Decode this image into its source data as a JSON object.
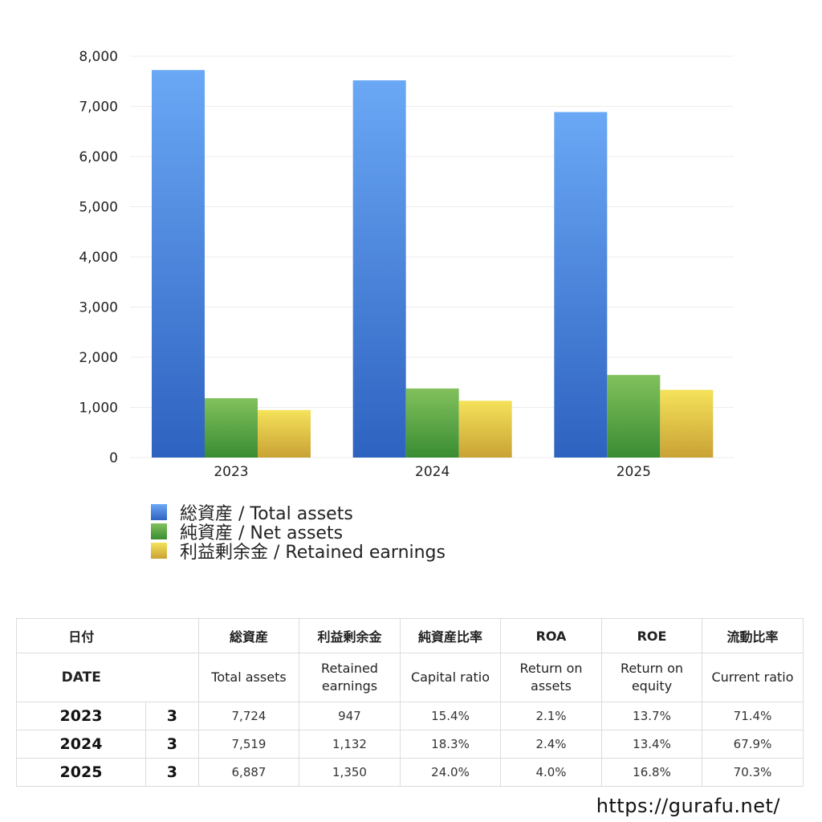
{
  "chart_data": {
    "type": "bar",
    "categories": [
      "2023",
      "2024",
      "2025"
    ],
    "series": [
      {
        "name": "総資産 / Total assets",
        "values": [
          7724,
          7519,
          6887
        ],
        "color_top": "#6aa8f5",
        "color_bottom": "#2e62c0"
      },
      {
        "name": "純資産 / Net assets",
        "values": [
          1183,
          1377,
          1646
        ],
        "color_top": "#82c15c",
        "color_bottom": "#3a8c33"
      },
      {
        "name": "利益剰余金 / Retained earnings",
        "values": [
          947,
          1132,
          1350
        ],
        "color_top": "#f5e25a",
        "color_bottom": "#c9a235"
      }
    ],
    "ylim": [
      0,
      8000
    ],
    "yticks": [
      "0",
      "1,000",
      "2,000",
      "3,000",
      "4,000",
      "5,000",
      "6,000",
      "7,000",
      "8,000"
    ],
    "grid": true,
    "legend_position": "bottom-left"
  },
  "table": {
    "header_jp": [
      "日付",
      "",
      "総資産",
      "利益剰余金",
      "純資産比率",
      "ROA",
      "ROE",
      "流動比率"
    ],
    "header_en": [
      "DATE",
      "",
      "Total assets",
      "Retained\nearnings",
      "Capital ratio",
      "Return on\nassets",
      "Return on\nequity",
      "Current ratio"
    ],
    "rows": [
      {
        "year": "2023",
        "month": "3",
        "cells": [
          "7,724",
          "947",
          "15.4%",
          "2.1%",
          "13.7%",
          "71.4%"
        ]
      },
      {
        "year": "2024",
        "month": "3",
        "cells": [
          "7,519",
          "1,132",
          "18.3%",
          "2.4%",
          "13.4%",
          "67.9%"
        ]
      },
      {
        "year": "2025",
        "month": "3",
        "cells": [
          "6,887",
          "1,350",
          "24.0%",
          "4.0%",
          "16.8%",
          "70.3%"
        ]
      }
    ]
  },
  "footer": {
    "url": "https://gurafu.net/"
  }
}
